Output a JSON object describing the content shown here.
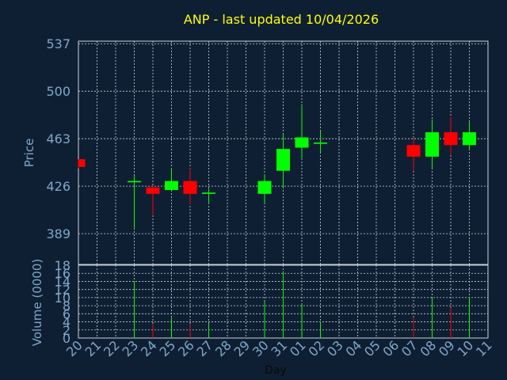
{
  "chart_data": {
    "type": "candlestick",
    "title": "ANP - last updated 10/04/2026",
    "xlabel": "Day",
    "price_panel": {
      "ylabel": "Price",
      "yticks": [
        389,
        426,
        463,
        500,
        537
      ],
      "ylim": [
        365,
        539
      ],
      "grid": true
    },
    "volume_panel": {
      "ylabel": "Volume (0000)",
      "yticks": [
        0,
        2,
        4,
        6,
        8,
        10,
        12,
        14,
        16,
        18
      ],
      "ylim": [
        0,
        18
      ],
      "grid": true
    },
    "days": [
      "20",
      "21",
      "22",
      "23",
      "24",
      "25",
      "26",
      "27",
      "28",
      "29",
      "30",
      "31",
      "01",
      "02",
      "03",
      "04",
      "05",
      "06",
      "07",
      "08",
      "09",
      "10",
      "11"
    ],
    "colors": {
      "up": "#00ff00",
      "down": "#ff0000",
      "background": "#0f1f33",
      "title": "#ffff00",
      "axis": "#7fa7c9"
    },
    "candles": [
      {
        "day": "20",
        "open": 447,
        "high": 447,
        "low": 440,
        "close": 441
      },
      {
        "day": "23",
        "open": 429,
        "high": 434,
        "low": 393,
        "close": 430
      },
      {
        "day": "24",
        "open": 425,
        "high": 426,
        "low": 404,
        "close": 420
      },
      {
        "day": "25",
        "open": 423,
        "high": 440,
        "low": 423,
        "close": 430
      },
      {
        "day": "26",
        "open": 430,
        "high": 440,
        "low": 412,
        "close": 420
      },
      {
        "day": "27",
        "open": 420,
        "high": 424,
        "low": 412,
        "close": 421
      },
      {
        "day": "30",
        "open": 420,
        "high": 435,
        "low": 412,
        "close": 430
      },
      {
        "day": "31",
        "open": 438,
        "high": 467,
        "low": 424,
        "close": 455
      },
      {
        "day": "01",
        "open": 456,
        "high": 490,
        "low": 448,
        "close": 464
      },
      {
        "day": "02",
        "open": 459,
        "high": 469,
        "low": 452,
        "close": 460
      },
      {
        "day": "07",
        "open": 458,
        "high": 464,
        "low": 438,
        "close": 449
      },
      {
        "day": "08",
        "open": 449,
        "high": 478,
        "low": 440,
        "close": 468
      },
      {
        "day": "09",
        "open": 468,
        "high": 480,
        "low": 450,
        "close": 458
      },
      {
        "day": "10",
        "open": 458,
        "high": 476,
        "low": 454,
        "close": 468
      }
    ],
    "volume": [
      {
        "day": "23",
        "value": 14,
        "dir": "up"
      },
      {
        "day": "24",
        "value": 3.5,
        "dir": "down"
      },
      {
        "day": "25",
        "value": 5,
        "dir": "up"
      },
      {
        "day": "26",
        "value": 3.5,
        "dir": "down"
      },
      {
        "day": "27",
        "value": 3.5,
        "dir": "up"
      },
      {
        "day": "30",
        "value": 9,
        "dir": "up"
      },
      {
        "day": "31",
        "value": 16.5,
        "dir": "up"
      },
      {
        "day": "01",
        "value": 8.5,
        "dir": "up"
      },
      {
        "day": "02",
        "value": 4,
        "dir": "up"
      },
      {
        "day": "07",
        "value": 5,
        "dir": "down"
      },
      {
        "day": "08",
        "value": 10,
        "dir": "up"
      },
      {
        "day": "09",
        "value": 7.5,
        "dir": "down"
      },
      {
        "day": "10",
        "value": 10,
        "dir": "up"
      }
    ]
  }
}
